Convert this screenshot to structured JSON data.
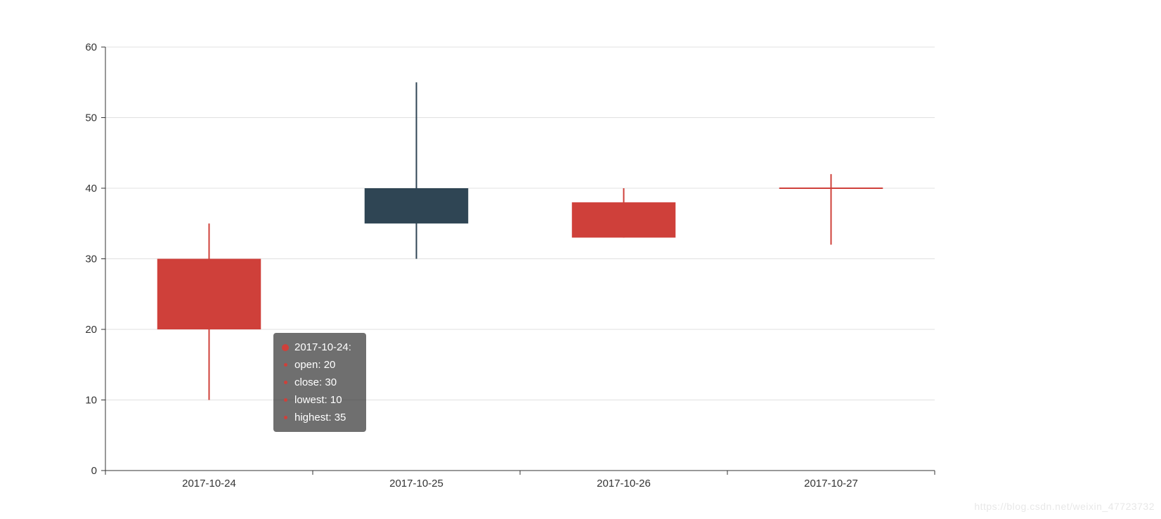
{
  "chart_data": {
    "type": "candlestick",
    "title": "",
    "xlabel": "",
    "ylabel": "",
    "categories": [
      "2017-10-24",
      "2017-10-25",
      "2017-10-26",
      "2017-10-27"
    ],
    "series": [
      {
        "name": "candlestick",
        "encoding": [
          "open",
          "close",
          "lowest",
          "highest"
        ],
        "values": [
          [
            20,
            30,
            10,
            35
          ],
          [
            40,
            35,
            30,
            55
          ],
          [
            33,
            38,
            33,
            40
          ],
          [
            40,
            40,
            32,
            42
          ]
        ]
      }
    ],
    "ylim": [
      0,
      60
    ],
    "y_ticks": [
      0,
      10,
      20,
      30,
      40,
      50,
      60
    ],
    "grid": true,
    "legend_position": "none",
    "colors": {
      "bullish": "#cf403a",
      "bearish": "#2f4554",
      "gridline": "#e0e0e0",
      "axis": "#333333",
      "tick_label": "#333333"
    }
  },
  "tooltip": {
    "title": "2017-10-24:",
    "lines": [
      "open: 20",
      "close: 30",
      "lowest: 10",
      "highest: 35"
    ],
    "marker_color": "#cf403a",
    "background": "rgba(50,50,50,0.7)"
  },
  "watermark": {
    "text": "https://blog.csdn.net/weixin_47723732"
  }
}
